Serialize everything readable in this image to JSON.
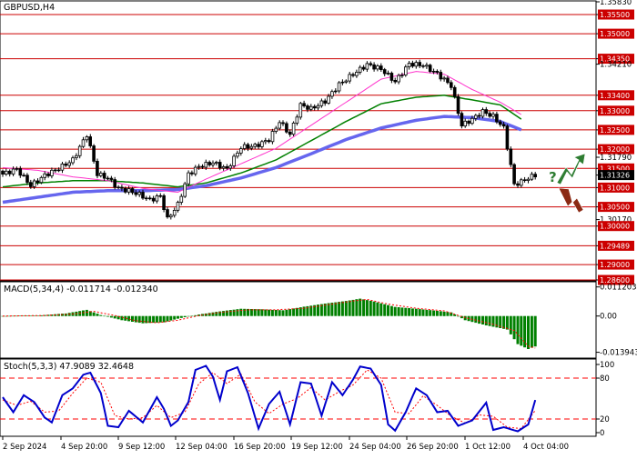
{
  "colors": {
    "level_line": "#cc0000",
    "candle": "#000000",
    "ma_fast": "#ff33cc",
    "ma_mid": "#008000",
    "ma_slow": "#6666ee",
    "macd_bar": "#008000",
    "macd_signal": "#ff0000",
    "stoch_main": "#0000cc",
    "stoch_signal": "#ff0000",
    "arrow_up": "#2e7d32",
    "arrow_down": "#8b2a14"
  },
  "icons": [
    "question-mark-icon",
    "arrow-up-icon",
    "arrow-down-icon"
  ],
  "chart_data": [
    {
      "type": "candlestick",
      "title": "GBPUSD,H4",
      "ylim": [
        1.286,
        1.3583
      ],
      "axis_labels": [
        "1.35830",
        "1.35500",
        "1.35000",
        "1.34350",
        "1.34210",
        "1.33400",
        "1.33000",
        "1.32500",
        "1.32000",
        "1.31790",
        "1.31500",
        "1.31326",
        "1.31000",
        "1.30500",
        "1.30170",
        "1.30000",
        "1.29489",
        "1.29000",
        "1.28600"
      ],
      "levels": [
        1.355,
        1.35,
        1.3435,
        1.334,
        1.33,
        1.325,
        1.32,
        1.315,
        1.31,
        1.305,
        1.3,
        1.29489,
        1.29,
        1.286
      ],
      "current_price": 1.31326,
      "x_labels": [
        "2 Sep 2024",
        "4 Sep 20:00",
        "9 Sep 12:00",
        "12 Sep 04:00",
        "16 Sep 20:00",
        "19 Sep 12:00",
        "24 Sep 04:00",
        "26 Sep 20:00",
        "1 Oct 12:00",
        "4 Oct 04:00"
      ],
      "close_anchors": [
        [
          0,
          1.3135
        ],
        [
          4,
          1.3148
        ],
        [
          8,
          1.3105
        ],
        [
          12,
          1.3132
        ],
        [
          16,
          1.315
        ],
        [
          20,
          1.3172
        ],
        [
          24,
          1.3238
        ],
        [
          27,
          1.3135
        ],
        [
          30,
          1.3125
        ],
        [
          33,
          1.3098
        ],
        [
          36,
          1.3092
        ],
        [
          39,
          1.3082
        ],
        [
          42,
          1.3068
        ],
        [
          45,
          1.3078
        ],
        [
          47,
          1.3018
        ],
        [
          50,
          1.3056
        ],
        [
          53,
          1.3135
        ],
        [
          56,
          1.3155
        ],
        [
          60,
          1.3165
        ],
        [
          64,
          1.3148
        ],
        [
          68,
          1.3205
        ],
        [
          72,
          1.3208
        ],
        [
          76,
          1.3225
        ],
        [
          79,
          1.3272
        ],
        [
          82,
          1.3238
        ],
        [
          85,
          1.3315
        ],
        [
          88,
          1.3305
        ],
        [
          92,
          1.3325
        ],
        [
          96,
          1.3368
        ],
        [
          100,
          1.3395
        ],
        [
          104,
          1.342
        ],
        [
          108,
          1.3408
        ],
        [
          112,
          1.3375
        ],
        [
          116,
          1.3422
        ],
        [
          120,
          1.3418
        ],
        [
          124,
          1.3396
        ],
        [
          128,
          1.3365
        ],
        [
          131,
          1.3262
        ],
        [
          134,
          1.3278
        ],
        [
          137,
          1.3298
        ],
        [
          140,
          1.3285
        ],
        [
          143,
          1.3255
        ],
        [
          146,
          1.3108
        ],
        [
          148,
          1.3115
        ],
        [
          150,
          1.3125
        ],
        [
          152,
          1.31326
        ]
      ],
      "ma_fast_anchors": [
        [
          0,
          1.3152
        ],
        [
          10,
          1.3145
        ],
        [
          20,
          1.3128
        ],
        [
          30,
          1.3118
        ],
        [
          40,
          1.3098
        ],
        [
          50,
          1.3088
        ],
        [
          58,
          1.3122
        ],
        [
          68,
          1.3162
        ],
        [
          78,
          1.3202
        ],
        [
          88,
          1.3262
        ],
        [
          98,
          1.3322
        ],
        [
          108,
          1.3382
        ],
        [
          118,
          1.3402
        ],
        [
          126,
          1.3395
        ],
        [
          134,
          1.3355
        ],
        [
          142,
          1.3322
        ],
        [
          148,
          1.329
        ]
      ],
      "ma_mid_anchors": [
        [
          0,
          1.3102
        ],
        [
          10,
          1.3112
        ],
        [
          20,
          1.3118
        ],
        [
          30,
          1.3118
        ],
        [
          40,
          1.3112
        ],
        [
          50,
          1.3102
        ],
        [
          58,
          1.3112
        ],
        [
          68,
          1.3138
        ],
        [
          78,
          1.3172
        ],
        [
          88,
          1.3222
        ],
        [
          98,
          1.3272
        ],
        [
          108,
          1.3318
        ],
        [
          118,
          1.3335
        ],
        [
          126,
          1.334
        ],
        [
          134,
          1.3328
        ],
        [
          142,
          1.3315
        ],
        [
          148,
          1.3278
        ]
      ],
      "ma_slow_anchors": [
        [
          0,
          1.3062
        ],
        [
          10,
          1.3075
        ],
        [
          20,
          1.3088
        ],
        [
          30,
          1.3092
        ],
        [
          40,
          1.3092
        ],
        [
          50,
          1.3095
        ],
        [
          58,
          1.3105
        ],
        [
          68,
          1.3125
        ],
        [
          78,
          1.3152
        ],
        [
          88,
          1.3188
        ],
        [
          98,
          1.3225
        ],
        [
          108,
          1.3255
        ],
        [
          118,
          1.3275
        ],
        [
          126,
          1.3285
        ],
        [
          134,
          1.3282
        ],
        [
          142,
          1.3272
        ],
        [
          148,
          1.325
        ]
      ]
    },
    {
      "type": "bar",
      "title": "MACD(5,34,4) -0.011714 -0.012340",
      "ylim": [
        -0.0155,
        0.0125
      ],
      "axis_labels": [
        "0.011203",
        "0.00",
        "-0.013943"
      ],
      "macd_anchors": [
        [
          0,
          0.0
        ],
        [
          10,
          0.0002
        ],
        [
          18,
          0.001
        ],
        [
          24,
          0.0024
        ],
        [
          28,
          0.0004
        ],
        [
          34,
          -0.0016
        ],
        [
          40,
          -0.0028
        ],
        [
          46,
          -0.0024
        ],
        [
          50,
          -0.001
        ],
        [
          56,
          0.0006
        ],
        [
          62,
          0.0018
        ],
        [
          68,
          0.0028
        ],
        [
          74,
          0.0026
        ],
        [
          80,
          0.0022
        ],
        [
          86,
          0.0036
        ],
        [
          92,
          0.0048
        ],
        [
          98,
          0.0058
        ],
        [
          102,
          0.0067
        ],
        [
          106,
          0.0056
        ],
        [
          112,
          0.0035
        ],
        [
          118,
          0.0028
        ],
        [
          124,
          0.002
        ],
        [
          128,
          0.0014
        ],
        [
          132,
          -0.0016
        ],
        [
          138,
          -0.0036
        ],
        [
          144,
          -0.0052
        ],
        [
          147,
          -0.0108
        ],
        [
          150,
          -0.0127
        ],
        [
          152,
          -0.011714
        ]
      ],
      "signal_anchors": [
        [
          0,
          0.0
        ],
        [
          12,
          0.0002
        ],
        [
          20,
          0.0008
        ],
        [
          26,
          0.0018
        ],
        [
          32,
          0.0002
        ],
        [
          38,
          -0.0018
        ],
        [
          44,
          -0.0026
        ],
        [
          50,
          -0.0016
        ],
        [
          56,
          0.0002
        ],
        [
          62,
          0.0014
        ],
        [
          70,
          0.0024
        ],
        [
          78,
          0.0024
        ],
        [
          86,
          0.003
        ],
        [
          94,
          0.0046
        ],
        [
          100,
          0.0058
        ],
        [
          104,
          0.0064
        ],
        [
          110,
          0.0046
        ],
        [
          118,
          0.003
        ],
        [
          126,
          0.002
        ],
        [
          132,
          -0.0006
        ],
        [
          140,
          -0.0032
        ],
        [
          146,
          -0.0056
        ],
        [
          150,
          -0.0116
        ],
        [
          152,
          -0.01234
        ]
      ]
    },
    {
      "type": "line",
      "title": "Stoch(5,3,3) 47.9089 32.4648",
      "ylim": [
        0,
        100
      ],
      "axis_labels": [
        "100",
        "80",
        "20",
        "0"
      ],
      "levels": [
        80,
        20
      ],
      "k_anchors": [
        [
          0,
          52
        ],
        [
          3,
          30
        ],
        [
          6,
          55
        ],
        [
          9,
          45
        ],
        [
          12,
          22
        ],
        [
          14,
          15
        ],
        [
          17,
          55
        ],
        [
          20,
          65
        ],
        [
          23,
          85
        ],
        [
          25,
          88
        ],
        [
          28,
          58
        ],
        [
          30,
          10
        ],
        [
          33,
          8
        ],
        [
          36,
          32
        ],
        [
          40,
          15
        ],
        [
          44,
          52
        ],
        [
          46,
          35
        ],
        [
          48,
          10
        ],
        [
          50,
          18
        ],
        [
          53,
          45
        ],
        [
          55,
          92
        ],
        [
          58,
          98
        ],
        [
          60,
          82
        ],
        [
          62,
          48
        ],
        [
          64,
          90
        ],
        [
          67,
          96
        ],
        [
          70,
          58
        ],
        [
          73,
          6
        ],
        [
          76,
          42
        ],
        [
          79,
          60
        ],
        [
          82,
          12
        ],
        [
          85,
          74
        ],
        [
          88,
          72
        ],
        [
          91,
          25
        ],
        [
          94,
          74
        ],
        [
          97,
          55
        ],
        [
          100,
          78
        ],
        [
          102,
          97
        ],
        [
          105,
          94
        ],
        [
          108,
          70
        ],
        [
          110,
          12
        ],
        [
          112,
          3
        ],
        [
          115,
          30
        ],
        [
          118,
          65
        ],
        [
          121,
          55
        ],
        [
          124,
          30
        ],
        [
          127,
          32
        ],
        [
          130,
          10
        ],
        [
          134,
          18
        ],
        [
          138,
          44
        ],
        [
          140,
          4
        ],
        [
          143,
          8
        ],
        [
          147,
          2
        ],
        [
          150,
          12
        ],
        [
          152,
          47.9089
        ]
      ],
      "d_anchors": [
        [
          0,
          48
        ],
        [
          4,
          40
        ],
        [
          8,
          46
        ],
        [
          12,
          30
        ],
        [
          16,
          32
        ],
        [
          20,
          58
        ],
        [
          24,
          80
        ],
        [
          28,
          74
        ],
        [
          32,
          25
        ],
        [
          36,
          20
        ],
        [
          40,
          22
        ],
        [
          44,
          40
        ],
        [
          48,
          22
        ],
        [
          52,
          30
        ],
        [
          56,
          72
        ],
        [
          60,
          88
        ],
        [
          64,
          72
        ],
        [
          68,
          86
        ],
        [
          72,
          45
        ],
        [
          76,
          28
        ],
        [
          80,
          42
        ],
        [
          84,
          50
        ],
        [
          88,
          66
        ],
        [
          92,
          48
        ],
        [
          96,
          60
        ],
        [
          100,
          70
        ],
        [
          104,
          92
        ],
        [
          108,
          80
        ],
        [
          112,
          30
        ],
        [
          116,
          28
        ],
        [
          120,
          54
        ],
        [
          124,
          40
        ],
        [
          128,
          24
        ],
        [
          132,
          14
        ],
        [
          136,
          26
        ],
        [
          140,
          24
        ],
        [
          144,
          8
        ],
        [
          148,
          6
        ],
        [
          152,
          32.4648
        ]
      ]
    }
  ]
}
